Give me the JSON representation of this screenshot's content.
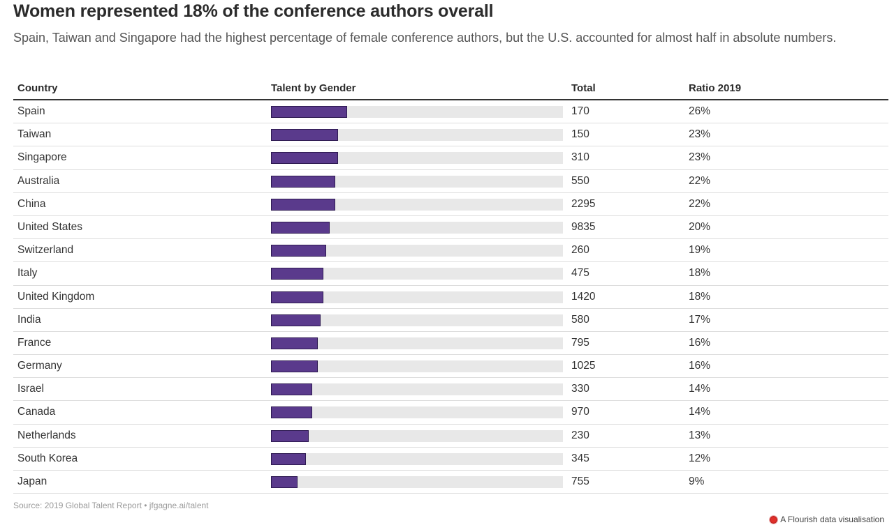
{
  "header": {
    "title": "Women represented 18% of the conference authors overall",
    "subtitle": "Spain, Taiwan and Singapore had the highest percentage of female conference authors, but the U.S. accounted for almost half in absolute numbers."
  },
  "colors": {
    "bar_fill": "#5a3a8c",
    "bar_track": "#e8e8e8"
  },
  "chart_data": {
    "type": "table",
    "title": "Women represented 18% of the conference authors overall",
    "subtitle": "Spain, Taiwan and Singapore had the highest percentage of female conference authors, but the U.S. accounted for almost half in absolute numbers.",
    "columns": [
      "Country",
      "Talent by Gender",
      "Total",
      "Ratio 2019"
    ],
    "bar_scale": [
      0,
      100
    ],
    "rows": [
      {
        "country": "Spain",
        "total": "170",
        "ratio": "26%",
        "ratio_value": 26
      },
      {
        "country": "Taiwan",
        "total": "150",
        "ratio": "23%",
        "ratio_value": 23
      },
      {
        "country": "Singapore",
        "total": "310",
        "ratio": "23%",
        "ratio_value": 23
      },
      {
        "country": "Australia",
        "total": "550",
        "ratio": "22%",
        "ratio_value": 22
      },
      {
        "country": "China",
        "total": "2295",
        "ratio": "22%",
        "ratio_value": 22
      },
      {
        "country": "United States",
        "total": "9835",
        "ratio": "20%",
        "ratio_value": 20
      },
      {
        "country": "Switzerland",
        "total": "260",
        "ratio": "19%",
        "ratio_value": 19
      },
      {
        "country": "Italy",
        "total": "475",
        "ratio": "18%",
        "ratio_value": 18
      },
      {
        "country": "United Kingdom",
        "total": "1420",
        "ratio": "18%",
        "ratio_value": 18
      },
      {
        "country": "India",
        "total": "580",
        "ratio": "17%",
        "ratio_value": 17
      },
      {
        "country": "France",
        "total": "795",
        "ratio": "16%",
        "ratio_value": 16
      },
      {
        "country": "Germany",
        "total": "1025",
        "ratio": "16%",
        "ratio_value": 16
      },
      {
        "country": "Israel",
        "total": "330",
        "ratio": "14%",
        "ratio_value": 14
      },
      {
        "country": "Canada",
        "total": "970",
        "ratio": "14%",
        "ratio_value": 14
      },
      {
        "country": "Netherlands",
        "total": "230",
        "ratio": "13%",
        "ratio_value": 13
      },
      {
        "country": "South Korea",
        "total": "345",
        "ratio": "12%",
        "ratio_value": 12
      },
      {
        "country": "Japan",
        "total": "755",
        "ratio": "9%",
        "ratio_value": 9
      }
    ]
  },
  "footer": {
    "source": "Source: 2019 Global Talent Report • jfgagne.ai/talent",
    "credit": "A Flourish data visualisation",
    "credit_icon": "flourish-logo-icon"
  }
}
